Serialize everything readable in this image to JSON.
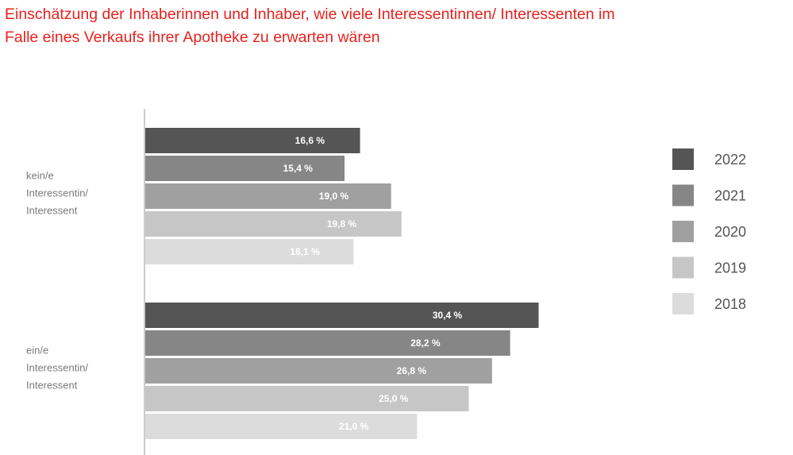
{
  "title_line1": "Einschätzung der Inhaberinnen und Inhaber, wie viele Interessentinnen/ Interessenten im",
  "title_line2": "Falle eines Verkaufs ihrer Apotheke zu erwarten wären",
  "chart_data": {
    "type": "bar",
    "orientation": "horizontal",
    "title": "Einschätzung der Inhaberinnen und Inhaber, wie viele Interessentinnen/ Interessenten im Falle eines Verkaufs ihrer Apotheke zu erwarten wären",
    "categories": [
      [
        "kein/e",
        "Interessentin/",
        "Interessent"
      ],
      [
        "ein/e",
        "Interessentin/",
        "Interessent"
      ]
    ],
    "series": [
      {
        "name": "2022",
        "color": "#555555",
        "values": [
          16.6,
          30.4
        ],
        "labels": [
          "16,6 %",
          "30,4 %"
        ]
      },
      {
        "name": "2021",
        "color": "#868686",
        "values": [
          15.4,
          28.2
        ],
        "labels": [
          "15,4 %",
          "28,2 %"
        ]
      },
      {
        "name": "2020",
        "color": "#a0a0a0",
        "values": [
          19.0,
          26.8
        ],
        "labels": [
          "19,0 %",
          "26,8 %"
        ]
      },
      {
        "name": "2019",
        "color": "#c6c6c6",
        "values": [
          19.8,
          25.0
        ],
        "labels": [
          "19,8 %",
          "25,0 %"
        ]
      },
      {
        "name": "2018",
        "color": "#dcdcdc",
        "values": [
          16.1,
          21.0
        ],
        "labels": [
          "16,1 %",
          "21,0 %"
        ]
      }
    ],
    "xlim": [
      0,
      35
    ],
    "xlabel": "",
    "ylabel": "",
    "grid": false,
    "legend_position": "right"
  }
}
